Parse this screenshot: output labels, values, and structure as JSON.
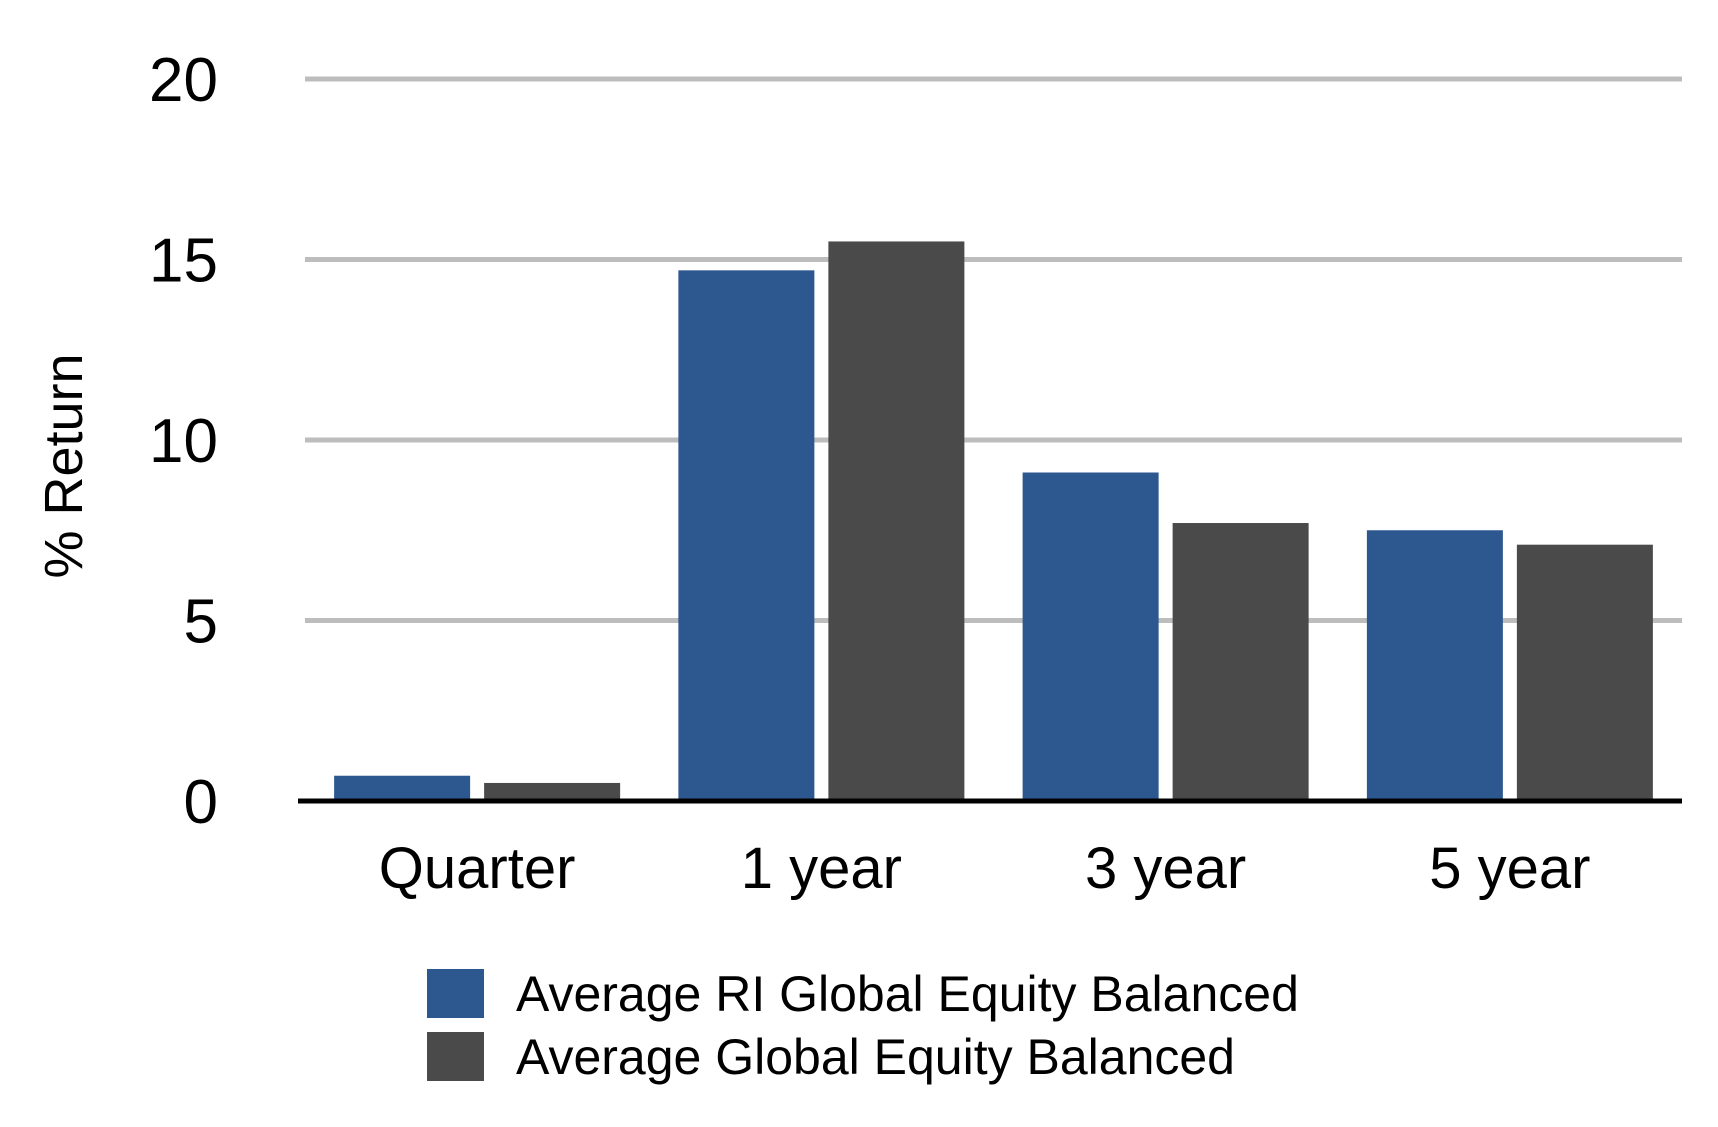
{
  "chart_data": {
    "type": "bar",
    "title": "",
    "xlabel": "",
    "ylabel": "% Return",
    "ylim": [
      0,
      20
    ],
    "yticks": [
      "0",
      "5",
      "10",
      "15",
      "20"
    ],
    "categories": [
      "Quarter",
      "1 year",
      "3 year",
      "5 year"
    ],
    "series": [
      {
        "name": "Average RI Global Equity Balanced",
        "color": "#2d578f",
        "values": [
          0.7,
          14.7,
          9.1,
          7.5
        ]
      },
      {
        "name": "Average Global Equity Balanced",
        "color": "#4a4a4a",
        "values": [
          0.5,
          15.5,
          7.7,
          7.1
        ]
      }
    ],
    "grid": true,
    "gridColor": "#bdbdbd",
    "legend": "bottom-center"
  }
}
